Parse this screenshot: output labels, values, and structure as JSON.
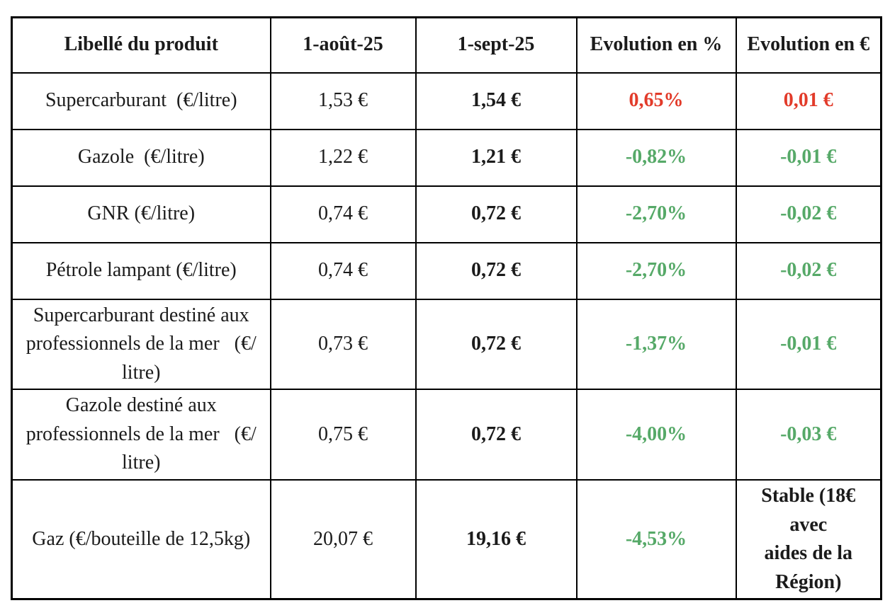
{
  "colors": {
    "up": "#e23b2a",
    "down": "#56a968",
    "neutral": "#1b1b1b"
  },
  "table": {
    "columns": [
      {
        "label": "Libellé du produit"
      },
      {
        "label": "1-août-25"
      },
      {
        "label": "1-sept-25"
      },
      {
        "label": "Evolution en %"
      },
      {
        "label": "Evolution en €"
      }
    ],
    "rows": [
      {
        "label": "Supercarburant  (€/litre)",
        "aug": "1,53 €",
        "sep": "1,54 €",
        "pct": "0,65%",
        "eur": "0,01 €",
        "pct_trend": "up",
        "eur_trend": "up"
      },
      {
        "label": "Gazole  (€/litre)",
        "aug": "1,22 €",
        "sep": "1,21 €",
        "pct": "-0,82%",
        "eur": "-0,01 €",
        "pct_trend": "down",
        "eur_trend": "down"
      },
      {
        "label": "GNR (€/litre)",
        "aug": "0,74 €",
        "sep": "0,72 €",
        "pct": "-2,70%",
        "eur": "-0,02 €",
        "pct_trend": "down",
        "eur_trend": "down"
      },
      {
        "label": "Pétrole lampant (€/litre)",
        "aug": "0,74 €",
        "sep": "0,72 €",
        "pct": "-2,70%",
        "eur": "-0,02 €",
        "pct_trend": "down",
        "eur_trend": "down"
      },
      {
        "label": "Supercarburant destiné aux\nprofessionnels de la mer   (€/\nlitre)",
        "aug": "0,73 €",
        "sep": "0,72 €",
        "pct": "-1,37%",
        "eur": "-0,01 €",
        "pct_trend": "down",
        "eur_trend": "down"
      },
      {
        "label": "Gazole destiné aux\nprofessionnels de la mer   (€/\nlitre)",
        "aug": "0,75 €",
        "sep": "0,72 €",
        "pct": "-4,00%",
        "eur": "-0,03 €",
        "pct_trend": "down",
        "eur_trend": "down"
      },
      {
        "label": "Gaz (€/bouteille de 12,5kg)",
        "aug": "20,07 €",
        "sep": "19,16 €",
        "pct": "-4,53%",
        "eur": "Stable (18€ avec\naides de la\nRégion)",
        "pct_trend": "down",
        "eur_trend": "neutral"
      }
    ]
  }
}
